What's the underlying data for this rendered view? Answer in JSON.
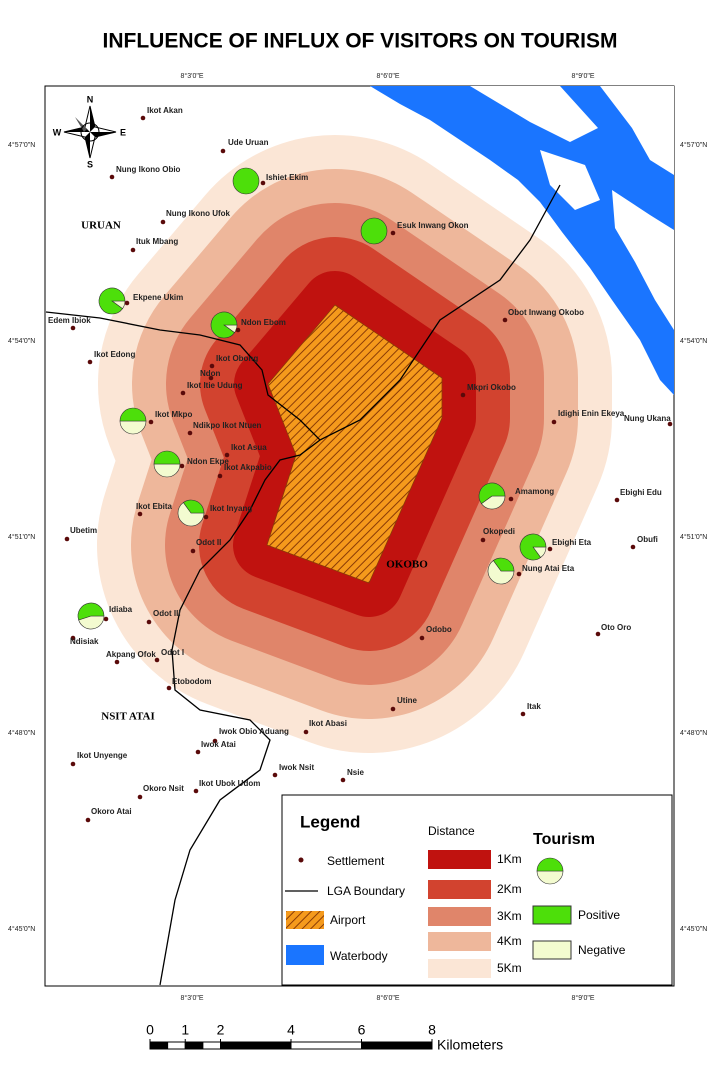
{
  "title": "INFLUENCE OF INFLUX OF VISITORS ON TOURISM",
  "coordinates": {
    "top": [
      "8°3'0\"E",
      "8°6'0\"E",
      "8°9'0\"E"
    ],
    "bottom": [
      "8°3'0\"E",
      "8°6'0\"E",
      "8°9'0\"E"
    ],
    "left": [
      "4°57'0\"N",
      "4°54'0\"N",
      "4°51'0\"N",
      "4°48'0\"N",
      "4°45'0\"N"
    ],
    "right": [
      "4°57'0\"N",
      "4°54'0\"N",
      "4°51'0\"N",
      "4°48'0\"N",
      "4°45'0\"N"
    ]
  },
  "compass": {
    "n": "N",
    "s": "S",
    "e": "E",
    "w": "W"
  },
  "regions": [
    "URUAN",
    "OKOBO",
    "NSIT ATAI"
  ],
  "settlements": [
    "Ikot Akan",
    "Ude Uruan",
    "Ishiet Ekim",
    "Nung Ikono Obio",
    "Nung Ikono Ufok",
    "Esuk Inwang Okon",
    "Ituk Mbang",
    "Ekpene Ukim",
    "Edem Ibiok",
    "Ndon Ebom",
    "Obot Inwang Okobo",
    "Ikot Edong",
    "Ikot Obong",
    "Ndon",
    "Ikot Itie Udung",
    "Mkpri Okobo",
    "Ikot Mkpo",
    "Ndikpo Ikot Ntuen",
    "Idighi Enin Ekeya",
    "Nung Ukana",
    "Ikot Asua",
    "Ndon Ekpe",
    "Ikot Akpabio",
    "Amamong",
    "Ebighi Edu",
    "Ikot Ebita",
    "Ikot Inyang",
    "Okopedi",
    "Ebighi Eta",
    "Obufi",
    "Ubetim",
    "Odot II",
    "Nung Atai Eta",
    "Idiaba",
    "Odot III",
    "Ndisiak",
    "Oto Oro",
    "Odobo",
    "Akpang Ofok",
    "Odot I",
    "Etobodom",
    "Utine",
    "Itak",
    "Iwok Obio Aduang",
    "Ikot Abasi",
    "Iwok Atai",
    "Ikot Unyenge",
    "Iwok Nsit",
    "Nsie",
    "Okoro Nsit",
    "Ikot Ubok Udom",
    "Okoro Atai"
  ],
  "tourism": [
    {
      "positive": 100,
      "negative": 0
    },
    {
      "positive": 100,
      "negative": 0
    },
    {
      "positive": 90,
      "negative": 10
    },
    {
      "positive": 90,
      "negative": 10
    },
    {
      "positive": 50,
      "negative": 50
    },
    {
      "positive": 50,
      "negative": 50
    },
    {
      "positive": 35,
      "negative": 65
    },
    {
      "positive": 60,
      "negative": 40
    },
    {
      "positive": 85,
      "negative": 15
    },
    {
      "positive": 35,
      "negative": 65
    },
    {
      "positive": 55,
      "negative": 45
    }
  ],
  "legend": {
    "title": "Legend",
    "settlement": "Settlement",
    "boundary": "LGA Boundary",
    "airport": "Airport",
    "waterbody": "Waterbody",
    "distance_title": "Distance",
    "distance": [
      {
        "label": "1Km",
        "color": "#c0120f"
      },
      {
        "label": "2Km",
        "color": "#d2432f"
      },
      {
        "label": "3Km",
        "color": "#e0856a"
      },
      {
        "label": "4Km",
        "color": "#eeb79b"
      },
      {
        "label": "5Km",
        "color": "#fbe6d6"
      }
    ],
    "tourism_title": "Tourism",
    "positive": "Positive",
    "negative": "Negative"
  },
  "colors": {
    "positive": "#4ddf0a",
    "negative": "#f3fbd0",
    "water": "#1a75ff",
    "airport": "#f59a1c"
  },
  "scale_bar": {
    "ticks": [
      0,
      1,
      2,
      4,
      6,
      8
    ],
    "unit": "Kilometers"
  }
}
